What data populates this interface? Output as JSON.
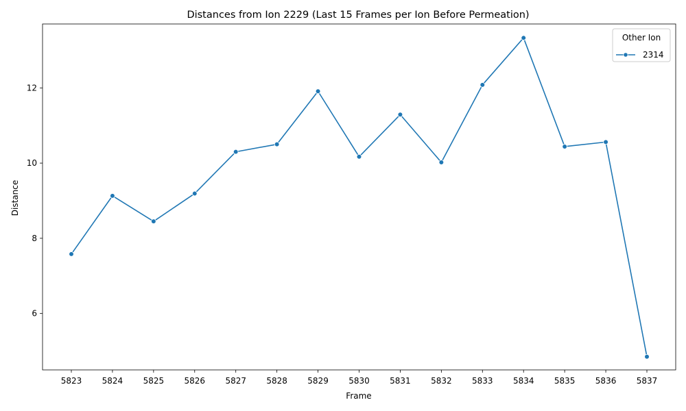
{
  "chart_data": {
    "type": "line",
    "title": "Distances from Ion 2229 (Last 15 Frames per Ion Before Permeation)",
    "xlabel": "Frame",
    "ylabel": "Distance",
    "x": [
      5823,
      5824,
      5825,
      5826,
      5827,
      5828,
      5829,
      5830,
      5831,
      5832,
      5833,
      5834,
      5835,
      5836,
      5837
    ],
    "ylim": [
      4.5,
      13.7
    ],
    "yticks": [
      6,
      8,
      10,
      12
    ],
    "grid": false,
    "legend": {
      "title": "Other Ion",
      "position": "top-right"
    },
    "series": [
      {
        "name": "2314",
        "color": "#1f77b4",
        "values": [
          7.58,
          9.13,
          8.45,
          9.19,
          10.3,
          10.5,
          11.91,
          10.17,
          11.29,
          10.02,
          12.08,
          13.33,
          10.44,
          10.56,
          4.85
        ]
      }
    ]
  }
}
